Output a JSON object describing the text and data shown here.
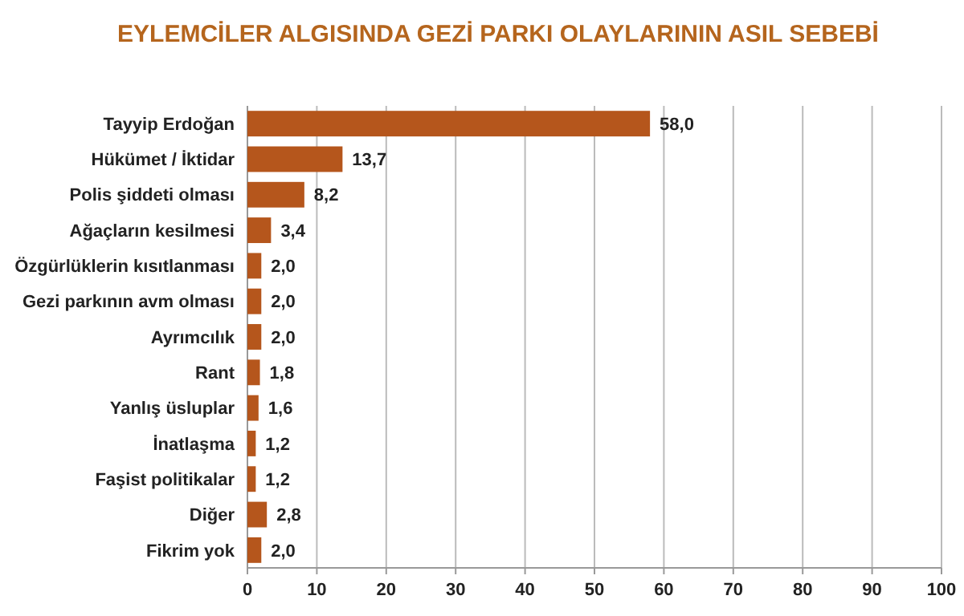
{
  "chart_data": {
    "type": "bar",
    "orientation": "horizontal",
    "title": "EYLEMCİLER ALGISINDA GEZİ PARKI OLAYLARININ ASIL SEBEBİ",
    "categories": [
      "Tayyip Erdoğan",
      "Hükümet / İktidar",
      "Polis şiddeti olması",
      "Ağaçların kesilmesi",
      "Özgürlüklerin kısıtlanması",
      "Gezi parkının avm olması",
      "Ayrımcılık",
      "Rant",
      "Yanlış üsluplar",
      "İnatlaşma",
      "Faşist politikalar",
      "Diğer",
      "Fikrim yok"
    ],
    "values": [
      58.0,
      13.7,
      8.2,
      3.4,
      2.0,
      2.0,
      2.0,
      1.8,
      1.6,
      1.2,
      1.2,
      2.8,
      2.0
    ],
    "value_labels": [
      "58,0",
      "13,7",
      "8,2",
      "3,4",
      "2,0",
      "2,0",
      "2,0",
      "1,8",
      "1,6",
      "1,2",
      "1,2",
      "2,8",
      "2,0"
    ],
    "color": "#b5561c",
    "xlim": [
      0,
      100
    ],
    "xticks": [
      0,
      10,
      20,
      30,
      40,
      50,
      60,
      70,
      80,
      90,
      100
    ],
    "grid": "x"
  }
}
